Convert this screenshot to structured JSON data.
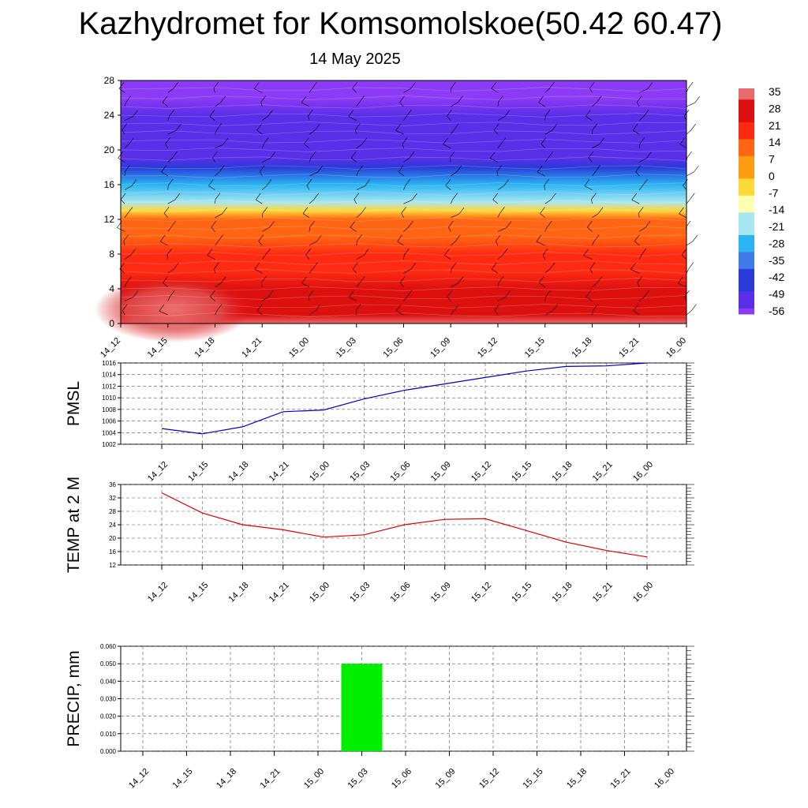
{
  "title": "Kazhydromet for Komsomolskoe(50.42 60.47)",
  "subtitle": "14 May 2025",
  "chart_data": [
    {
      "type": "heatmap",
      "x_labels": [
        "14_12",
        "14_15",
        "14_18",
        "14_21",
        "15_00",
        "15_03",
        "15_06",
        "15_09",
        "15_12",
        "15_15",
        "15_18",
        "15_21",
        "16_00"
      ],
      "y_ticks": [
        0,
        4,
        8,
        12,
        16,
        20,
        24,
        28
      ],
      "ylim": [
        0,
        28
      ],
      "z_colorbar_labels": [
        "35",
        "28",
        "21",
        "14",
        "7",
        "0",
        "-7",
        "-14",
        "-21",
        "-28",
        "-35",
        "-42",
        "-49",
        "-56"
      ],
      "profile_levels": [
        0,
        1,
        2,
        4,
        6,
        8,
        10,
        12,
        13,
        14,
        16,
        18,
        19,
        20,
        22,
        24,
        26,
        28
      ],
      "profile_values": [
        33,
        31,
        28,
        24,
        21,
        18,
        15,
        8,
        -8,
        -18,
        -30,
        -42,
        -50,
        -54,
        -50,
        -53,
        -58,
        -60
      ],
      "colors": [
        "#8b3bf5",
        "#5a2fe8",
        "#2a3bd8",
        "#3e7ae8",
        "#2ab4f2",
        "#a8e6f2",
        "#ffffb0",
        "#ffd83a",
        "#ff9d12",
        "#ff6512",
        "#ff2a12",
        "#dd1010",
        "#e86a6a"
      ]
    },
    {
      "type": "line",
      "ylabel": "PMSL",
      "x_labels": [
        "14_12",
        "14_15",
        "14_18",
        "14_21",
        "15_00",
        "15_03",
        "15_06",
        "15_09",
        "15_12",
        "15_15",
        "15_18",
        "15_21",
        "16_00"
      ],
      "values": [
        1004.7,
        1003.8,
        1005.0,
        1007.6,
        1007.9,
        1009.8,
        1011.3,
        1012.4,
        1013.5,
        1014.6,
        1015.4,
        1015.5,
        1016.0
      ],
      "y_ticks": [
        1002,
        1004,
        1006,
        1008,
        1010,
        1012,
        1014,
        1016
      ],
      "ylim": [
        1002,
        1016
      ],
      "color": "#0000cc"
    },
    {
      "type": "line",
      "ylabel": "TEMP at 2 M",
      "x_labels": [
        "14_12",
        "14_15",
        "14_18",
        "14_21",
        "15_00",
        "15_03",
        "15_06",
        "15_09",
        "15_12",
        "15_15",
        "15_18",
        "15_21",
        "16_00"
      ],
      "values": [
        33.5,
        27.5,
        24.0,
        22.5,
        20.3,
        21.0,
        24.0,
        25.6,
        25.8,
        22.3,
        18.8,
        16.3,
        14.4
      ],
      "y_ticks": [
        12,
        16,
        20,
        24,
        28,
        32,
        36
      ],
      "ylim": [
        12,
        36
      ],
      "color": "#dd0000"
    },
    {
      "type": "bar",
      "ylabel": "PRECIP, mm",
      "x_labels": [
        "14_12",
        "14_15",
        "14_18",
        "14_21",
        "15_00",
        "15_03",
        "15_06",
        "15_09",
        "15_12",
        "15_15",
        "15_18",
        "15_21",
        "16_00"
      ],
      "values": [
        0,
        0,
        0,
        0,
        0,
        0.05,
        0,
        0,
        0,
        0,
        0,
        0,
        0
      ],
      "y_ticks": [
        "0.000",
        "0.010",
        "0.020",
        "0.030",
        "0.040",
        "0.050",
        "0.060"
      ],
      "ylim": [
        0,
        0.06
      ],
      "color": "#00ee00"
    }
  ]
}
